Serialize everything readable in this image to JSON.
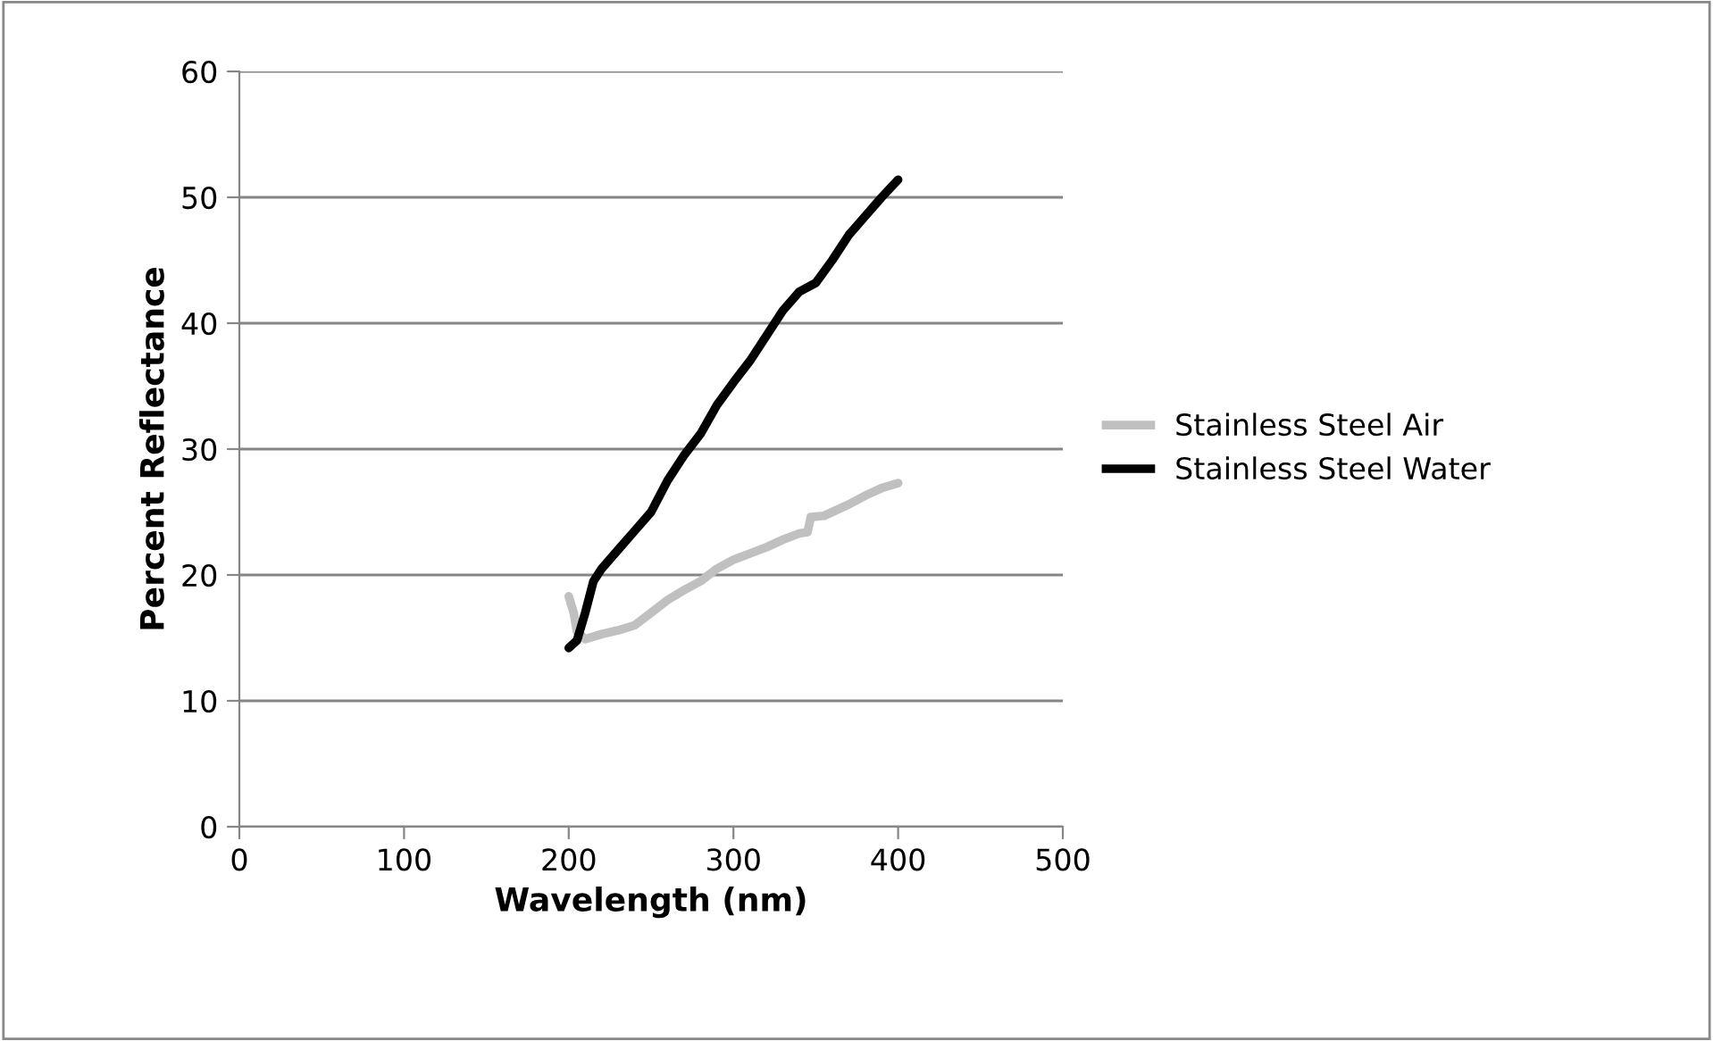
{
  "chart_data": {
    "type": "line",
    "xlabel": "Wavelength (nm)",
    "ylabel": "Percent Reflectance",
    "xlim": [
      0,
      500
    ],
    "xticks": [
      0,
      100,
      200,
      300,
      400,
      500
    ],
    "ylim": [
      0,
      60
    ],
    "yticks": [
      0,
      10,
      20,
      30,
      40,
      50,
      60
    ],
    "grid": "y",
    "legend": "right",
    "marker": "none",
    "line_style": "solid",
    "series": [
      {
        "name": "Stainless Steel Air",
        "color": "#c0c0c0",
        "x": [
          200,
          203,
          205,
          210,
          220,
          230,
          240,
          250,
          260,
          270,
          280,
          290,
          300,
          310,
          320,
          330,
          340,
          345,
          347,
          355,
          360,
          370,
          380,
          390,
          400
        ],
        "values": [
          18.3,
          17,
          15.5,
          14.9,
          15.3,
          15.6,
          16,
          17,
          18,
          18.8,
          19.5,
          20.5,
          21.2,
          21.7,
          22.2,
          22.8,
          23.3,
          23.4,
          24.6,
          24.7,
          25,
          25.6,
          26.3,
          26.9,
          27.3
        ]
      },
      {
        "name": "Stainless Steel Water",
        "color": "#000000",
        "x": [
          200,
          205,
          210,
          215,
          220,
          230,
          240,
          250,
          260,
          270,
          280,
          290,
          300,
          310,
          320,
          330,
          340,
          350,
          360,
          370,
          380,
          390,
          400
        ],
        "values": [
          14.2,
          14.8,
          17,
          19.5,
          20.5,
          22,
          23.5,
          25,
          27.5,
          29.5,
          31.2,
          33.5,
          35.3,
          37,
          39,
          41,
          42.5,
          43.2,
          45,
          47,
          48.5,
          50,
          51.4
        ]
      }
    ]
  }
}
